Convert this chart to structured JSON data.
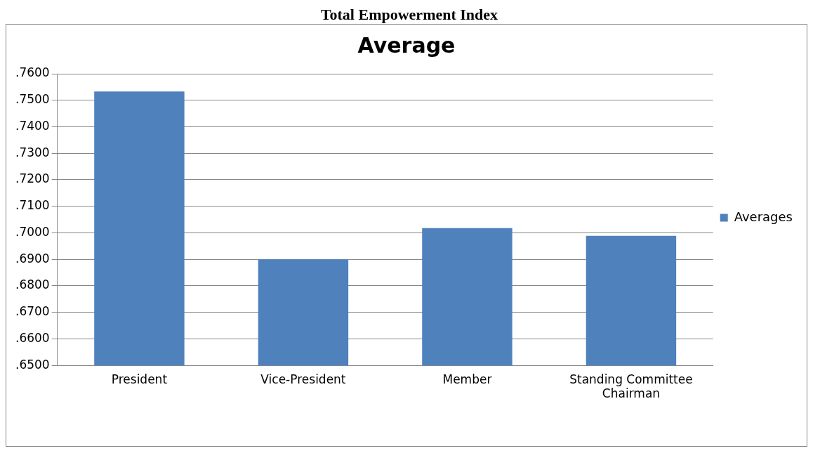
{
  "chart_data": {
    "type": "bar",
    "title": "Average",
    "annotations": [
      "Total Empowerment Index"
    ],
    "categories": [
      "President",
      "Vice-President",
      "Member",
      "Standing Committee Chairman"
    ],
    "series": [
      {
        "name": "Averages",
        "color": "#4f81bd",
        "values": [
          0.7533,
          0.69,
          0.7018,
          0.6989
        ]
      }
    ],
    "ylim": [
      0.65,
      0.76
    ],
    "yticks": [
      {
        "value": 0.65,
        "label": ".6500"
      },
      {
        "value": 0.66,
        "label": ".6600"
      },
      {
        "value": 0.67,
        "label": ".6700"
      },
      {
        "value": 0.68,
        "label": ".6800"
      },
      {
        "value": 0.69,
        "label": ".6900"
      },
      {
        "value": 0.7,
        "label": ".7000"
      },
      {
        "value": 0.71,
        "label": ".7100"
      },
      {
        "value": 0.72,
        "label": ".7200"
      },
      {
        "value": 0.73,
        "label": ".7300"
      },
      {
        "value": 0.74,
        "label": ".7400"
      },
      {
        "value": 0.75,
        "label": ".7500"
      },
      {
        "value": 0.76,
        "label": ".7600"
      }
    ],
    "grid": "y",
    "legend": "right"
  }
}
